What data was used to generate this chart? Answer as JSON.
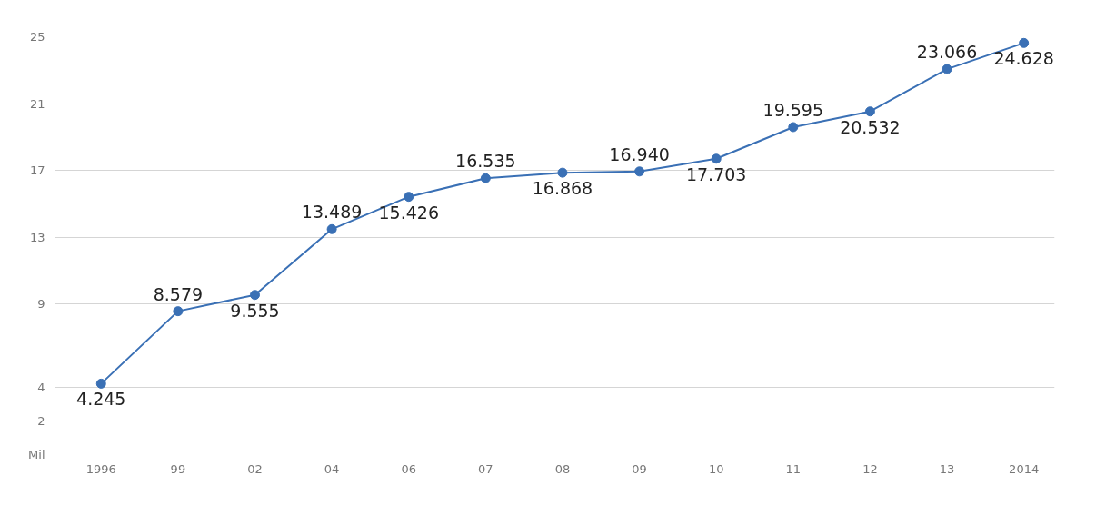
{
  "chart_data": {
    "type": "line",
    "categories": [
      "1996",
      "99",
      "02",
      "04",
      "06",
      "07",
      "08",
      "09",
      "10",
      "11",
      "12",
      "13",
      "2014"
    ],
    "series": [
      {
        "color": "#3a70b5",
        "values": [
          4.245,
          8.579,
          9.555,
          13.489,
          15.426,
          16.535,
          16.868,
          16.94,
          17.703,
          19.595,
          20.532,
          23.066,
          24.628
        ],
        "value_labels": [
          "4.245",
          "8.579",
          "9.555",
          "13.489",
          "15.426",
          "16.535",
          "16.868",
          "16.940",
          "17.703",
          "19.595",
          "20.532",
          "23.066",
          "24.628"
        ]
      }
    ],
    "ylim": [
      0,
      25
    ],
    "yticks": [
      {
        "value": 0,
        "label": "Mil"
      },
      2,
      4,
      9,
      13,
      17,
      21,
      25
    ],
    "grid": "y",
    "marker": "circle",
    "line_style": "solid"
  }
}
